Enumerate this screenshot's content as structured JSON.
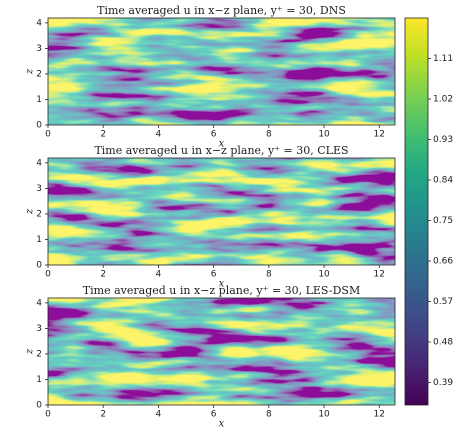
{
  "chart_data": [
    {
      "type": "heatmap",
      "title": "Time averaged u in x−z plane, y⁺ = 30, DNS",
      "xlabel": "x",
      "ylabel": "z",
      "xlim": [
        0,
        12.57
      ],
      "ylim": [
        0,
        4.19
      ],
      "xticks": [
        0,
        2,
        4,
        6,
        8,
        10,
        12
      ],
      "yticks": [
        0,
        1,
        2,
        3,
        4
      ]
    },
    {
      "type": "heatmap",
      "title": "Time averaged u in x−z plane, y⁺ = 30, CLES",
      "xlabel": "x",
      "ylabel": "z",
      "xlim": [
        0,
        12.57
      ],
      "ylim": [
        0,
        4.19
      ],
      "xticks": [
        0,
        2,
        4,
        6,
        8,
        10,
        12
      ],
      "yticks": [
        0,
        1,
        2,
        3,
        4
      ]
    },
    {
      "type": "heatmap",
      "title": "Time averaged u in x−z plane, y⁺ = 30, LES-DSM",
      "xlabel": "x",
      "ylabel": "z",
      "xlim": [
        0,
        12.57
      ],
      "ylim": [
        0,
        4.19
      ],
      "xticks": [
        0,
        2,
        4,
        6,
        8,
        10,
        12
      ],
      "yticks": [
        0,
        1,
        2,
        3,
        4
      ]
    }
  ],
  "colorbar": {
    "colormap": "viridis",
    "lim": [
      0.34,
      1.2
    ],
    "ticks": [
      0.39,
      0.48,
      0.57,
      0.66,
      0.75,
      0.84,
      0.93,
      1.02,
      1.11
    ]
  }
}
